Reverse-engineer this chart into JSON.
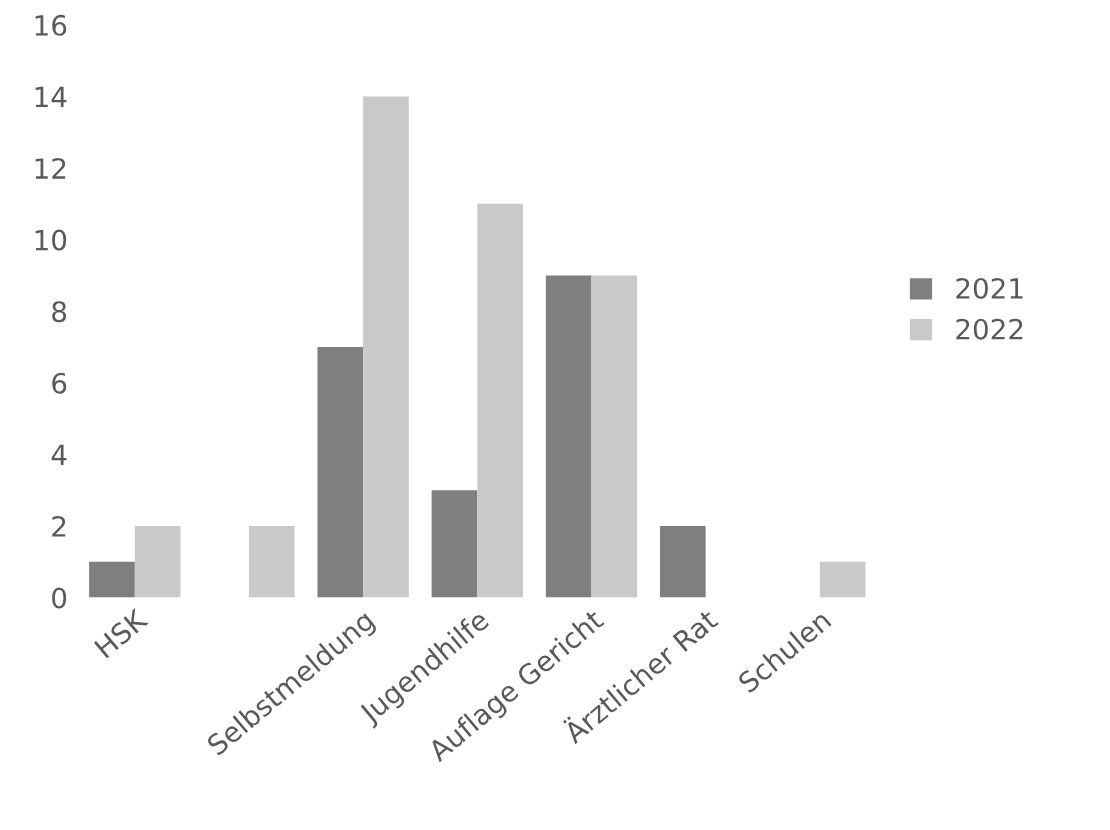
{
  "chart_data": {
    "type": "bar",
    "categories": [
      "HSK",
      null,
      "Selbstmeldung",
      "Jugendhilfe",
      "Auflage Gericht",
      "Ärztlicher Rat",
      "Schulen"
    ],
    "series": [
      {
        "name": "2021",
        "color": "#7f7f7f",
        "values": [
          1,
          0,
          7,
          3,
          9,
          2,
          0
        ]
      },
      {
        "name": "2022",
        "color": "#c9c9c9",
        "values": [
          2,
          2,
          14,
          11,
          9,
          0,
          1
        ]
      }
    ],
    "ylim": [
      0,
      16
    ],
    "yticks": [
      0,
      2,
      4,
      6,
      8,
      10,
      12,
      14,
      16
    ],
    "grid": false,
    "legend": "right"
  }
}
